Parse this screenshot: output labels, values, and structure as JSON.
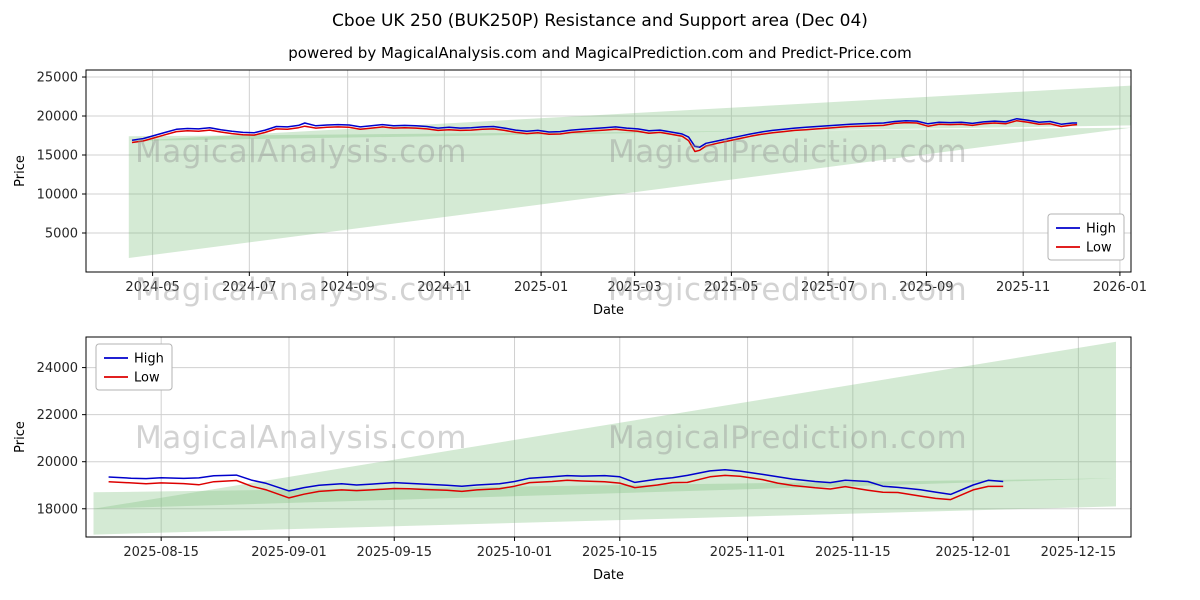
{
  "figure": {
    "title": "Cboe UK 250 (BUK250P) Resistance and Support area (Dec 04)",
    "subtitle": "powered by MagicalAnalysis.com and MagicalPrediction.com and Predict-Price.com"
  },
  "watermarks": {
    "left_text": "MagicalAnalysis.com",
    "right_text": "MagicalPrediction.com"
  },
  "colors": {
    "high": "#0000cc",
    "low": "#dd0000",
    "area": "#85c285",
    "grid": "#d0d0d0",
    "axis": "#000000"
  },
  "chart_data": [
    {
      "type": "line",
      "title": "",
      "xlabel": "Date",
      "ylabel": "Price",
      "xlim": [
        "2024-03-20",
        "2026-01-08"
      ],
      "ylim": [
        0,
        25900
      ],
      "xticks": [
        "2024-05",
        "2024-07",
        "2024-09",
        "2024-11",
        "2025-01",
        "2025-03",
        "2025-05",
        "2025-07",
        "2025-09",
        "2025-11",
        "2026-01"
      ],
      "yticks": [
        5000,
        10000,
        15000,
        20000,
        25000
      ],
      "grid": true,
      "legend": {
        "position": "center-right",
        "entries": [
          "High",
          "Low"
        ]
      },
      "dates": [
        "2024-04-18",
        "2024-04-25",
        "2024-05-02",
        "2024-05-09",
        "2024-05-16",
        "2024-05-23",
        "2024-05-30",
        "2024-06-06",
        "2024-06-13",
        "2024-06-20",
        "2024-06-27",
        "2024-07-04",
        "2024-07-11",
        "2024-07-18",
        "2024-07-25",
        "2024-08-01",
        "2024-08-05",
        "2024-08-12",
        "2024-08-19",
        "2024-08-26",
        "2024-09-02",
        "2024-09-09",
        "2024-09-16",
        "2024-09-23",
        "2024-09-30",
        "2024-10-07",
        "2024-10-14",
        "2024-10-21",
        "2024-10-28",
        "2024-11-04",
        "2024-11-11",
        "2024-11-18",
        "2024-11-25",
        "2024-12-02",
        "2024-12-09",
        "2024-12-16",
        "2024-12-23",
        "2024-12-30",
        "2025-01-06",
        "2025-01-13",
        "2025-01-20",
        "2025-01-27",
        "2025-02-03",
        "2025-02-10",
        "2025-02-17",
        "2025-02-24",
        "2025-03-03",
        "2025-03-10",
        "2025-03-17",
        "2025-03-24",
        "2025-03-31",
        "2025-04-04",
        "2025-04-08",
        "2025-04-11",
        "2025-04-15",
        "2025-04-22",
        "2025-04-29",
        "2025-05-06",
        "2025-05-13",
        "2025-05-20",
        "2025-05-27",
        "2025-06-03",
        "2025-06-10",
        "2025-06-17",
        "2025-06-24",
        "2025-07-01",
        "2025-07-08",
        "2025-07-15",
        "2025-07-22",
        "2025-07-29",
        "2025-08-05",
        "2025-08-12",
        "2025-08-19",
        "2025-08-26",
        "2025-09-02",
        "2025-09-09",
        "2025-09-16",
        "2025-09-23",
        "2025-09-30",
        "2025-10-07",
        "2025-10-14",
        "2025-10-21",
        "2025-10-28",
        "2025-11-04",
        "2025-11-11",
        "2025-11-18",
        "2025-11-25",
        "2025-12-02",
        "2025-12-05"
      ],
      "series": [
        {
          "name": "High",
          "color": "#0000cc",
          "values": [
            16900,
            17100,
            17500,
            17900,
            18300,
            18400,
            18350,
            18500,
            18250,
            18050,
            17900,
            17850,
            18200,
            18650,
            18600,
            18800,
            19100,
            18750,
            18850,
            18900,
            18850,
            18600,
            18750,
            18900,
            18750,
            18800,
            18750,
            18650,
            18450,
            18550,
            18450,
            18500,
            18600,
            18650,
            18450,
            18200,
            18050,
            18150,
            17950,
            18000,
            18200,
            18300,
            18400,
            18500,
            18600,
            18450,
            18350,
            18100,
            18200,
            17950,
            17700,
            17300,
            16100,
            16000,
            16500,
            16800,
            17100,
            17400,
            17700,
            17950,
            18150,
            18300,
            18450,
            18550,
            18650,
            18750,
            18850,
            18950,
            19000,
            19050,
            19100,
            19300,
            19400,
            19350,
            19000,
            19200,
            19150,
            19200,
            19050,
            19250,
            19350,
            19250,
            19650,
            19450,
            19200,
            19300,
            18950,
            19100,
            19100
          ]
        },
        {
          "name": "Low",
          "color": "#dd0000",
          "values": [
            16600,
            16800,
            17200,
            17600,
            18000,
            18100,
            18050,
            18200,
            17950,
            17750,
            17600,
            17550,
            17900,
            18350,
            18300,
            18500,
            18700,
            18450,
            18550,
            18600,
            18550,
            18300,
            18450,
            18600,
            18450,
            18500,
            18450,
            18350,
            18150,
            18250,
            18150,
            18200,
            18300,
            18350,
            18150,
            17900,
            17750,
            17850,
            17650,
            17700,
            17900,
            18000,
            18100,
            18200,
            18300,
            18150,
            18050,
            17800,
            17900,
            17650,
            17400,
            16850,
            15450,
            15600,
            16150,
            16500,
            16800,
            17100,
            17400,
            17650,
            17850,
            18000,
            18150,
            18250,
            18350,
            18450,
            18550,
            18650,
            18700,
            18750,
            18800,
            19050,
            19150,
            19100,
            18700,
            18950,
            18900,
            18950,
            18800,
            19000,
            19100,
            19000,
            19400,
            19200,
            18950,
            19000,
            18650,
            18850,
            18900
          ]
        }
      ],
      "areas": [
        {
          "name": "support-area",
          "opacity": 0.35,
          "points": [
            [
              "2024-04-16",
              17400
            ],
            [
              "2026-01-08",
              18500
            ],
            [
              "2024-04-16",
              1800
            ]
          ]
        },
        {
          "name": "resistance-area",
          "opacity": 0.35,
          "points": [
            [
              "2024-04-16",
              16800
            ],
            [
              "2026-01-08",
              23900
            ],
            [
              "2026-01-08",
              18800
            ]
          ]
        }
      ]
    },
    {
      "type": "line",
      "title": "",
      "xlabel": "Date",
      "ylabel": "Price",
      "xlim": [
        "2025-08-05",
        "2025-12-22"
      ],
      "ylim": [
        16800,
        25300
      ],
      "xticks": [
        "2025-08-15",
        "2025-09-01",
        "2025-09-15",
        "2025-10-01",
        "2025-10-15",
        "2025-11-01",
        "2025-11-15",
        "2025-12-01",
        "2025-12-15"
      ],
      "yticks": [
        18000,
        20000,
        22000,
        24000
      ],
      "grid": true,
      "legend": {
        "position": "upper-left",
        "entries": [
          "High",
          "Low"
        ]
      },
      "dates": [
        "2025-08-08",
        "2025-08-11",
        "2025-08-13",
        "2025-08-15",
        "2025-08-18",
        "2025-08-20",
        "2025-08-22",
        "2025-08-25",
        "2025-08-27",
        "2025-08-29",
        "2025-09-01",
        "2025-09-03",
        "2025-09-05",
        "2025-09-08",
        "2025-09-10",
        "2025-09-12",
        "2025-09-15",
        "2025-09-17",
        "2025-09-19",
        "2025-09-22",
        "2025-09-24",
        "2025-09-26",
        "2025-09-29",
        "2025-10-01",
        "2025-10-03",
        "2025-10-06",
        "2025-10-08",
        "2025-10-10",
        "2025-10-13",
        "2025-10-15",
        "2025-10-17",
        "2025-10-20",
        "2025-10-22",
        "2025-10-24",
        "2025-10-27",
        "2025-10-29",
        "2025-10-31",
        "2025-11-03",
        "2025-11-05",
        "2025-11-07",
        "2025-11-10",
        "2025-11-12",
        "2025-11-14",
        "2025-11-17",
        "2025-11-19",
        "2025-11-21",
        "2025-11-24",
        "2025-11-26",
        "2025-11-28",
        "2025-12-01",
        "2025-12-03",
        "2025-12-05"
      ],
      "series": [
        {
          "name": "High",
          "color": "#0000cc",
          "values": [
            19350,
            19300,
            19280,
            19320,
            19290,
            19310,
            19400,
            19430,
            19220,
            19080,
            18760,
            18900,
            19000,
            19060,
            19010,
            19050,
            19110,
            19080,
            19050,
            19000,
            18960,
            19010,
            19060,
            19160,
            19300,
            19360,
            19410,
            19390,
            19410,
            19360,
            19120,
            19260,
            19320,
            19420,
            19610,
            19660,
            19600,
            19460,
            19360,
            19260,
            19160,
            19110,
            19210,
            19160,
            18960,
            18910,
            18810,
            18710,
            18610,
            19010,
            19210,
            19160
          ]
        },
        {
          "name": "Low",
          "color": "#dd0000",
          "values": [
            19150,
            19100,
            19060,
            19100,
            19070,
            19020,
            19150,
            19200,
            18960,
            18800,
            18460,
            18620,
            18740,
            18800,
            18770,
            18800,
            18860,
            18850,
            18820,
            18790,
            18740,
            18800,
            18850,
            18960,
            19110,
            19160,
            19210,
            19180,
            19150,
            19090,
            18900,
            19010,
            19110,
            19120,
            19360,
            19420,
            19380,
            19240,
            19090,
            18990,
            18890,
            18840,
            18940,
            18790,
            18700,
            18690,
            18540,
            18440,
            18390,
            18800,
            18950,
            18950
          ]
        }
      ],
      "areas": [
        {
          "name": "support-area",
          "opacity": 0.35,
          "points": [
            [
              "2025-08-06",
              18700
            ],
            [
              "2025-12-20",
              19300
            ],
            [
              "2025-12-20",
              18100
            ],
            [
              "2025-08-06",
              16900
            ]
          ]
        },
        {
          "name": "resistance-area",
          "opacity": 0.35,
          "points": [
            [
              "2025-08-06",
              18000
            ],
            [
              "2025-12-20",
              25100
            ],
            [
              "2025-12-20",
              19300
            ]
          ]
        }
      ]
    }
  ]
}
